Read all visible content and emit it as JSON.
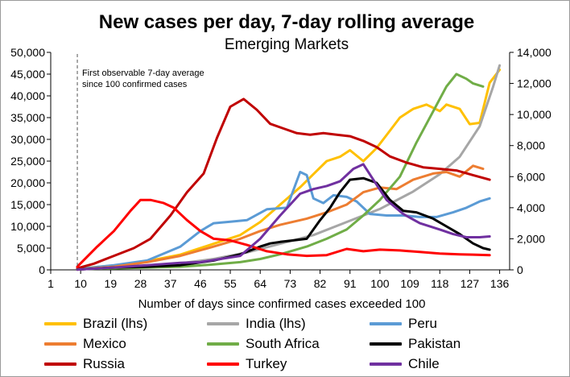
{
  "chart_data": {
    "type": "line",
    "title": "New cases per day, 7-day rolling average",
    "subtitle": "Emerging Markets",
    "xlabel": "Number of days since confirmed cases exceeded 100",
    "x_ticks": [
      1,
      10,
      19,
      28,
      37,
      46,
      55,
      64,
      73,
      82,
      91,
      100,
      109,
      118,
      127,
      136
    ],
    "ylim_left": [
      0,
      50000
    ],
    "yticks_left": [
      "0",
      "5,000",
      "10,000",
      "15,000",
      "20,000",
      "25,000",
      "30,000",
      "35,000",
      "40,000",
      "45,000",
      "50,000"
    ],
    "ylim_right": [
      0,
      14000
    ],
    "yticks_right": [
      "0",
      "2,000",
      "4,000",
      "6,000",
      "8,000",
      "10,000",
      "12,000",
      "14,000"
    ],
    "grid": false,
    "annotation": {
      "line1": "First observable 7-day average",
      "line2": "since 100 confirmed cases",
      "x": 9
    },
    "legend_position": "bottom",
    "series": [
      {
        "name": "Brazil (lhs)",
        "axis": "left",
        "color": "#FFC000",
        "points": [
          [
            9,
            300
          ],
          [
            20,
            1000
          ],
          [
            30,
            2000
          ],
          [
            40,
            3500
          ],
          [
            50,
            6000
          ],
          [
            58,
            8000
          ],
          [
            64,
            11000
          ],
          [
            70,
            15000
          ],
          [
            76,
            19000
          ],
          [
            80,
            22000
          ],
          [
            84,
            25000
          ],
          [
            88,
            26000
          ],
          [
            91,
            27500
          ],
          [
            95,
            25000
          ],
          [
            99,
            28000
          ],
          [
            102,
            31000
          ],
          [
            106,
            35000
          ],
          [
            110,
            37000
          ],
          [
            114,
            38000
          ],
          [
            118,
            36500
          ],
          [
            120,
            38000
          ],
          [
            124,
            37000
          ],
          [
            127,
            33500
          ],
          [
            130,
            33800
          ],
          [
            133,
            43000
          ],
          [
            136,
            46000
          ]
        ]
      },
      {
        "name": "India (lhs)",
        "axis": "left",
        "color": "#A6A6A6",
        "points": [
          [
            9,
            100
          ],
          [
            20,
            500
          ],
          [
            30,
            1000
          ],
          [
            40,
            1500
          ],
          [
            50,
            2500
          ],
          [
            60,
            4000
          ],
          [
            70,
            6000
          ],
          [
            80,
            8000
          ],
          [
            90,
            11000
          ],
          [
            100,
            14000
          ],
          [
            110,
            18000
          ],
          [
            118,
            22000
          ],
          [
            124,
            26000
          ],
          [
            130,
            33000
          ],
          [
            134,
            42000
          ],
          [
            136,
            47000
          ]
        ]
      },
      {
        "name": "Peru",
        "axis": "right",
        "color": "#5B9BD5",
        "points": [
          [
            9,
            50
          ],
          [
            20,
            300
          ],
          [
            30,
            600
          ],
          [
            40,
            1500
          ],
          [
            46,
            2500
          ],
          [
            50,
            3000
          ],
          [
            55,
            3100
          ],
          [
            60,
            3200
          ],
          [
            66,
            3900
          ],
          [
            72,
            4000
          ],
          [
            76,
            6300
          ],
          [
            78,
            6100
          ],
          [
            80,
            4600
          ],
          [
            83,
            4300
          ],
          [
            86,
            4800
          ],
          [
            90,
            4700
          ],
          [
            93,
            4400
          ],
          [
            97,
            3600
          ],
          [
            102,
            3500
          ],
          [
            107,
            3500
          ],
          [
            112,
            3400
          ],
          [
            117,
            3400
          ],
          [
            122,
            3700
          ],
          [
            126,
            4000
          ],
          [
            130,
            4400
          ],
          [
            133,
            4600
          ]
        ]
      },
      {
        "name": "Mexico",
        "axis": "right",
        "color": "#ED7D31",
        "points": [
          [
            9,
            20
          ],
          [
            20,
            200
          ],
          [
            30,
            500
          ],
          [
            40,
            900
          ],
          [
            50,
            1500
          ],
          [
            58,
            2000
          ],
          [
            64,
            2500
          ],
          [
            70,
            2900
          ],
          [
            78,
            3300
          ],
          [
            84,
            3700
          ],
          [
            90,
            4200
          ],
          [
            95,
            5000
          ],
          [
            100,
            5300
          ],
          [
            105,
            5200
          ],
          [
            110,
            5800
          ],
          [
            116,
            6200
          ],
          [
            120,
            6300
          ],
          [
            124,
            6000
          ],
          [
            128,
            6700
          ],
          [
            131,
            6500
          ]
        ]
      },
      {
        "name": "South Africa",
        "axis": "right",
        "color": "#70AD47",
        "points": [
          [
            9,
            50
          ],
          [
            20,
            100
          ],
          [
            30,
            150
          ],
          [
            40,
            200
          ],
          [
            50,
            350
          ],
          [
            58,
            500
          ],
          [
            64,
            700
          ],
          [
            70,
            1000
          ],
          [
            78,
            1500
          ],
          [
            84,
            2000
          ],
          [
            90,
            2600
          ],
          [
            95,
            3500
          ],
          [
            100,
            4500
          ],
          [
            106,
            6000
          ],
          [
            111,
            8200
          ],
          [
            116,
            10200
          ],
          [
            120,
            11800
          ],
          [
            123,
            12600
          ],
          [
            126,
            12300
          ],
          [
            128,
            12000
          ],
          [
            131,
            11800
          ]
        ]
      },
      {
        "name": "Pakistan",
        "axis": "right",
        "color": "#000000",
        "points": [
          [
            9,
            20
          ],
          [
            20,
            150
          ],
          [
            30,
            200
          ],
          [
            40,
            300
          ],
          [
            50,
            600
          ],
          [
            58,
            1000
          ],
          [
            64,
            1500
          ],
          [
            67,
            1700
          ],
          [
            70,
            1800
          ],
          [
            74,
            1900
          ],
          [
            78,
            2000
          ],
          [
            82,
            3200
          ],
          [
            85,
            4000
          ],
          [
            88,
            5000
          ],
          [
            91,
            5800
          ],
          [
            95,
            5900
          ],
          [
            99,
            5600
          ],
          [
            103,
            4500
          ],
          [
            107,
            3800
          ],
          [
            111,
            3700
          ],
          [
            116,
            3300
          ],
          [
            120,
            2800
          ],
          [
            124,
            2300
          ],
          [
            128,
            1700
          ],
          [
            131,
            1400
          ],
          [
            133,
            1300
          ]
        ]
      },
      {
        "name": "Russia",
        "axis": "right",
        "color": "#C00000",
        "points": [
          [
            9,
            100
          ],
          [
            14,
            400
          ],
          [
            20,
            900
          ],
          [
            26,
            1400
          ],
          [
            31,
            2000
          ],
          [
            37,
            3500
          ],
          [
            42,
            5000
          ],
          [
            47,
            6200
          ],
          [
            51,
            8500
          ],
          [
            55,
            10500
          ],
          [
            59,
            11000
          ],
          [
            63,
            10300
          ],
          [
            67,
            9400
          ],
          [
            71,
            9100
          ],
          [
            75,
            8800
          ],
          [
            79,
            8700
          ],
          [
            83,
            8800
          ],
          [
            87,
            8700
          ],
          [
            91,
            8600
          ],
          [
            95,
            8300
          ],
          [
            99,
            7900
          ],
          [
            103,
            7300
          ],
          [
            108,
            6900
          ],
          [
            113,
            6600
          ],
          [
            118,
            6500
          ],
          [
            123,
            6400
          ],
          [
            128,
            6100
          ],
          [
            133,
            5800
          ]
        ]
      },
      {
        "name": "Turkey",
        "axis": "right",
        "color": "#FF0000",
        "points": [
          [
            9,
            200
          ],
          [
            15,
            1500
          ],
          [
            20,
            2500
          ],
          [
            25,
            3800
          ],
          [
            28,
            4500
          ],
          [
            31,
            4500
          ],
          [
            35,
            4300
          ],
          [
            38,
            4000
          ],
          [
            42,
            3200
          ],
          [
            46,
            2500
          ],
          [
            50,
            2000
          ],
          [
            55,
            1900
          ],
          [
            60,
            1600
          ],
          [
            66,
            1200
          ],
          [
            72,
            1000
          ],
          [
            78,
            900
          ],
          [
            84,
            950
          ],
          [
            90,
            1350
          ],
          [
            95,
            1200
          ],
          [
            100,
            1300
          ],
          [
            106,
            1250
          ],
          [
            112,
            1150
          ],
          [
            118,
            1050
          ],
          [
            124,
            1000
          ],
          [
            128,
            980
          ],
          [
            133,
            950
          ]
        ]
      },
      {
        "name": "Chile",
        "axis": "right",
        "color": "#7030A0",
        "points": [
          [
            9,
            20
          ],
          [
            20,
            150
          ],
          [
            30,
            300
          ],
          [
            40,
            450
          ],
          [
            46,
            500
          ],
          [
            52,
            700
          ],
          [
            58,
            900
          ],
          [
            64,
            2000
          ],
          [
            70,
            3500
          ],
          [
            76,
            4900
          ],
          [
            80,
            5200
          ],
          [
            84,
            5400
          ],
          [
            88,
            5700
          ],
          [
            92,
            6500
          ],
          [
            95,
            6800
          ],
          [
            98,
            5800
          ],
          [
            102,
            4500
          ],
          [
            107,
            3600
          ],
          [
            112,
            3000
          ],
          [
            118,
            2600
          ],
          [
            122,
            2300
          ],
          [
            126,
            2100
          ],
          [
            130,
            2100
          ],
          [
            133,
            2150
          ]
        ]
      }
    ]
  }
}
